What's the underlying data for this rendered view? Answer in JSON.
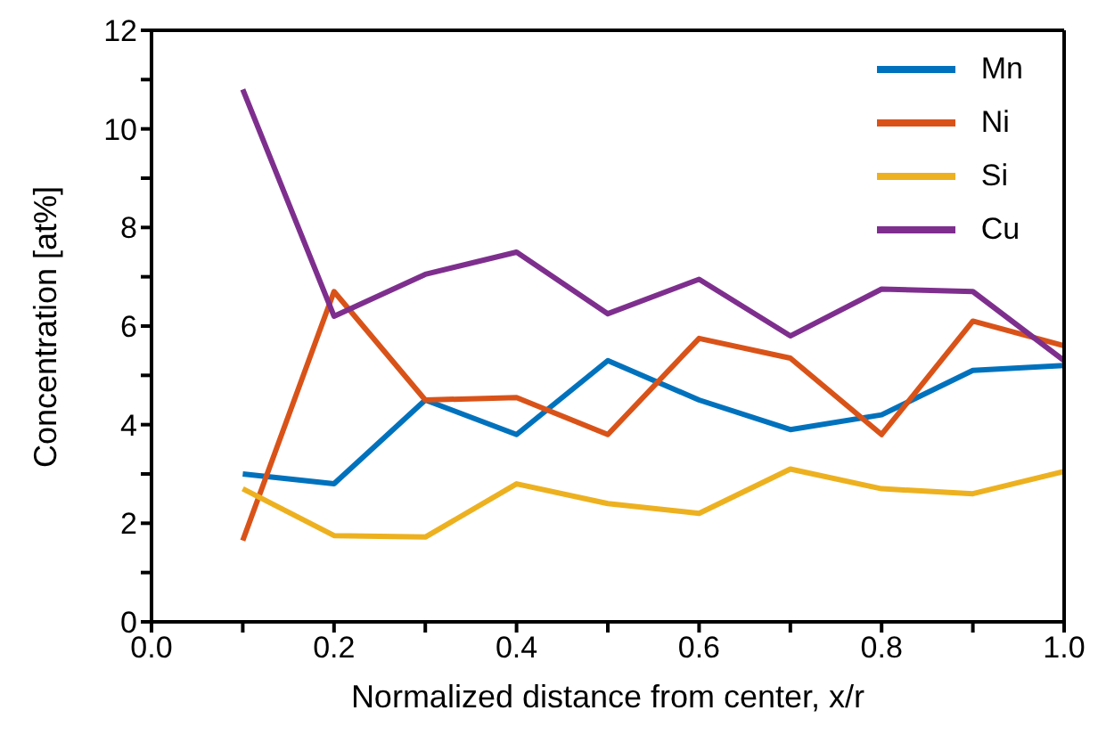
{
  "chart_data": {
    "type": "line",
    "xlabel": "Normalized distance from center, x/r",
    "ylabel": "Concentration [at%]",
    "x": [
      0.1,
      0.2,
      0.3,
      0.4,
      0.5,
      0.6,
      0.7,
      0.8,
      0.9,
      1.0
    ],
    "series": [
      {
        "name": "Mn",
        "color": "#0072bd",
        "values": [
          3.0,
          2.8,
          4.5,
          3.8,
          5.3,
          4.5,
          3.9,
          4.2,
          5.1,
          5.2
        ]
      },
      {
        "name": "Ni",
        "color": "#d95319",
        "values": [
          1.65,
          6.7,
          4.5,
          4.55,
          3.8,
          5.75,
          5.35,
          3.8,
          6.1,
          5.6
        ]
      },
      {
        "name": "Si",
        "color": "#edb120",
        "values": [
          2.7,
          1.75,
          1.72,
          2.8,
          2.4,
          2.2,
          3.1,
          2.7,
          2.6,
          3.05
        ]
      },
      {
        "name": "Cu",
        "color": "#7e2f8e",
        "values": [
          10.8,
          6.2,
          7.05,
          7.5,
          6.25,
          6.95,
          5.8,
          6.75,
          6.7,
          5.3
        ]
      }
    ],
    "xlim": [
      0,
      1
    ],
    "xticks": [
      {
        "value": 0,
        "label": "0.0"
      },
      {
        "value": 0.1,
        "label": null
      },
      0.2,
      {
        "value": 0.3,
        "label": null
      },
      0.4,
      {
        "value": 0.5,
        "label": null
      },
      0.6,
      {
        "value": 0.7,
        "label": null
      },
      0.8,
      {
        "value": 0.9,
        "label": null
      },
      {
        "value": 1,
        "label": "1.0"
      }
    ],
    "ylim": [
      0,
      12
    ],
    "yticks": [
      0,
      {
        "value": 1,
        "label": null
      },
      2,
      {
        "value": 3,
        "label": null
      },
      4,
      {
        "value": 5,
        "label": null
      },
      6,
      {
        "value": 7,
        "label": null
      },
      8,
      {
        "value": 9,
        "label": null
      },
      10,
      {
        "value": 11,
        "label": null
      },
      12
    ],
    "legend": "top right",
    "marker": "none",
    "line_style": "solid",
    "grid": false
  }
}
